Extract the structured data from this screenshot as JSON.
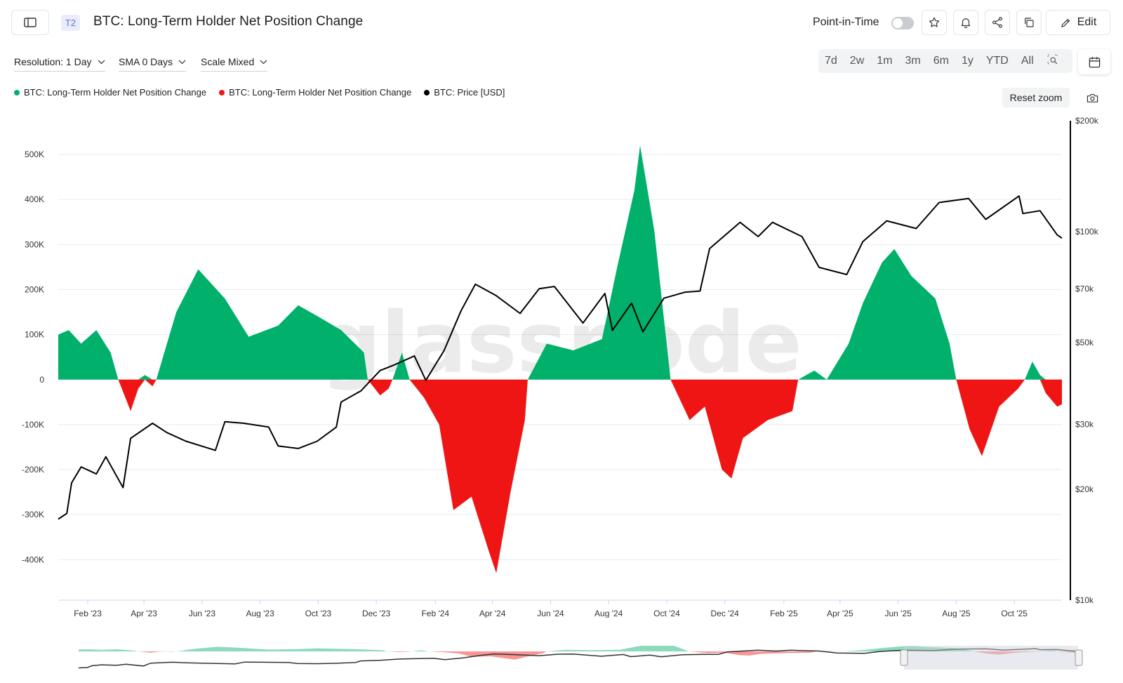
{
  "header": {
    "tier_badge": "T2",
    "title": "BTC: Long-Term Holder Net Position Change",
    "point_in_time_label": "Point-in-Time",
    "edit_label": "Edit"
  },
  "controls": {
    "resolution": "Resolution: 1 Day",
    "sma": "SMA 0 Days",
    "scale": "Scale Mixed",
    "ranges": [
      "7d",
      "2w",
      "1m",
      "3m",
      "6m",
      "1y",
      "YTD",
      "All"
    ]
  },
  "reset_zoom_label": "Reset zoom",
  "watermark": "glassnode",
  "colors": {
    "positive": "#00b06b",
    "negative": "#f01515",
    "price": "#000000",
    "grid": "#ebebeb"
  },
  "chart_data": {
    "type": "area",
    "series": [
      {
        "name": "BTC: Long-Term Holder Net Position Change",
        "color": "#00b06b",
        "role": "positive"
      },
      {
        "name": "BTC: Long-Term Holder Net Position Change",
        "color": "#f01515",
        "role": "negative"
      },
      {
        "name": "BTC: Price [USD]",
        "color": "#000000",
        "role": "price"
      }
    ],
    "x_range": [
      "2023-01-01",
      "2025-11-20"
    ],
    "x_ticks": [
      "Feb '23",
      "Apr '23",
      "Jun '23",
      "Aug '23",
      "Oct '23",
      "Dec '23",
      "Feb '24",
      "Apr '24",
      "Jun '24",
      "Aug '24",
      "Oct '24",
      "Dec '24",
      "Feb '25",
      "Apr '25",
      "Jun '25",
      "Aug '25",
      "Oct '25"
    ],
    "x_tick_dates": [
      "2023-02-01",
      "2023-04-01",
      "2023-06-01",
      "2023-08-01",
      "2023-10-01",
      "2023-12-01",
      "2024-02-01",
      "2024-04-01",
      "2024-06-01",
      "2024-08-01",
      "2024-10-01",
      "2024-12-01",
      "2025-02-01",
      "2025-04-01",
      "2025-06-01",
      "2025-08-01",
      "2025-10-01"
    ],
    "y_left": {
      "ticks": [
        500000,
        400000,
        300000,
        200000,
        100000,
        0,
        -100000,
        -200000,
        -300000,
        -400000
      ],
      "labels": [
        "500K",
        "400K",
        "300K",
        "200K",
        "100K",
        "0",
        "-100K",
        "-200K",
        "-300K",
        "-400K"
      ],
      "range": [
        -490000,
        575000
      ]
    },
    "y_right": {
      "scale": "log",
      "ticks": [
        10000,
        20000,
        30000,
        50000,
        70000,
        100000,
        200000
      ],
      "labels": [
        "$10k",
        "$20k",
        "$30k",
        "$50k",
        "$70k",
        "$100k",
        "$200k"
      ],
      "range": [
        10000,
        200000
      ]
    },
    "net_position_change": [
      [
        "2023-01-01",
        100000
      ],
      [
        "2023-01-12",
        110000
      ],
      [
        "2023-01-25",
        80000
      ],
      [
        "2023-02-10",
        110000
      ],
      [
        "2023-02-25",
        60000
      ],
      [
        "2023-03-05",
        0
      ],
      [
        "2023-03-18",
        -70000
      ],
      [
        "2023-03-26",
        -20000
      ],
      [
        "2023-04-02",
        10000
      ],
      [
        "2023-04-10",
        -15000
      ],
      [
        "2023-04-14",
        0
      ],
      [
        "2023-05-05",
        150000
      ],
      [
        "2023-05-28",
        245000
      ],
      [
        "2023-06-25",
        180000
      ],
      [
        "2023-07-20",
        95000
      ],
      [
        "2023-08-20",
        120000
      ],
      [
        "2023-09-10",
        165000
      ],
      [
        "2023-10-01",
        140000
      ],
      [
        "2023-10-25",
        110000
      ],
      [
        "2023-11-18",
        60000
      ],
      [
        "2023-11-22",
        0
      ],
      [
        "2023-12-05",
        -35000
      ],
      [
        "2023-12-14",
        -20000
      ],
      [
        "2023-12-18",
        0
      ],
      [
        "2023-12-28",
        60000
      ],
      [
        "2024-01-05",
        0
      ],
      [
        "2024-01-20",
        -40000
      ],
      [
        "2024-02-05",
        -100000
      ],
      [
        "2024-02-20",
        -290000
      ],
      [
        "2024-03-10",
        -260000
      ],
      [
        "2024-03-28",
        -380000
      ],
      [
        "2024-04-05",
        -430000
      ],
      [
        "2024-04-20",
        -250000
      ],
      [
        "2024-05-05",
        -90000
      ],
      [
        "2024-05-08",
        0
      ],
      [
        "2024-05-28",
        80000
      ],
      [
        "2024-06-25",
        65000
      ],
      [
        "2024-07-25",
        90000
      ],
      [
        "2024-08-10",
        250000
      ],
      [
        "2024-08-28",
        420000
      ],
      [
        "2024-09-03",
        520000
      ],
      [
        "2024-09-18",
        330000
      ],
      [
        "2024-10-05",
        0
      ],
      [
        "2024-10-25",
        -90000
      ],
      [
        "2024-11-10",
        -60000
      ],
      [
        "2024-11-28",
        -200000
      ],
      [
        "2024-12-08",
        -220000
      ],
      [
        "2024-12-20",
        -130000
      ],
      [
        "2025-01-15",
        -90000
      ],
      [
        "2025-02-10",
        -70000
      ],
      [
        "2025-02-16",
        0
      ],
      [
        "2025-03-05",
        20000
      ],
      [
        "2025-03-18",
        0
      ],
      [
        "2025-04-10",
        80000
      ],
      [
        "2025-04-25",
        170000
      ],
      [
        "2025-05-15",
        260000
      ],
      [
        "2025-05-28",
        290000
      ],
      [
        "2025-06-15",
        230000
      ],
      [
        "2025-07-10",
        180000
      ],
      [
        "2025-07-25",
        80000
      ],
      [
        "2025-08-01",
        0
      ],
      [
        "2025-08-15",
        -110000
      ],
      [
        "2025-08-28",
        -170000
      ],
      [
        "2025-09-15",
        -60000
      ],
      [
        "2025-10-05",
        -20000
      ],
      [
        "2025-10-12",
        0
      ],
      [
        "2025-10-20",
        40000
      ],
      [
        "2025-10-28",
        10000
      ],
      [
        "2025-11-03",
        -30000
      ],
      [
        "2025-11-15",
        -60000
      ],
      [
        "2025-11-20",
        -55000
      ]
    ],
    "btc_price_usd": [
      [
        "2023-01-01",
        16600
      ],
      [
        "2023-01-10",
        17200
      ],
      [
        "2023-01-15",
        20800
      ],
      [
        "2023-01-25",
        23000
      ],
      [
        "2023-02-10",
        22000
      ],
      [
        "2023-02-20",
        24500
      ],
      [
        "2023-03-10",
        20200
      ],
      [
        "2023-03-18",
        27500
      ],
      [
        "2023-04-10",
        30200
      ],
      [
        "2023-04-25",
        28500
      ],
      [
        "2023-05-15",
        27000
      ],
      [
        "2023-06-15",
        25500
      ],
      [
        "2023-06-25",
        30500
      ],
      [
        "2023-07-15",
        30200
      ],
      [
        "2023-08-10",
        29500
      ],
      [
        "2023-08-20",
        26200
      ],
      [
        "2023-09-10",
        25800
      ],
      [
        "2023-09-30",
        27000
      ],
      [
        "2023-10-20",
        29500
      ],
      [
        "2023-10-25",
        34500
      ],
      [
        "2023-11-15",
        37000
      ],
      [
        "2023-12-05",
        42000
      ],
      [
        "2023-12-20",
        43500
      ],
      [
        "2024-01-10",
        46000
      ],
      [
        "2024-01-22",
        39500
      ],
      [
        "2024-02-10",
        47500
      ],
      [
        "2024-02-28",
        61000
      ],
      [
        "2024-03-14",
        72000
      ],
      [
        "2024-04-05",
        67000
      ],
      [
        "2024-04-30",
        60000
      ],
      [
        "2024-05-20",
        70000
      ],
      [
        "2024-06-05",
        71000
      ],
      [
        "2024-07-05",
        56500
      ],
      [
        "2024-07-28",
        68000
      ],
      [
        "2024-08-05",
        54000
      ],
      [
        "2024-08-25",
        64000
      ],
      [
        "2024-09-06",
        53500
      ],
      [
        "2024-09-28",
        66000
      ],
      [
        "2024-10-20",
        68500
      ],
      [
        "2024-11-05",
        69000
      ],
      [
        "2024-11-15",
        90000
      ],
      [
        "2024-12-17",
        106000
      ],
      [
        "2025-01-05",
        97000
      ],
      [
        "2025-01-20",
        106000
      ],
      [
        "2025-02-20",
        97000
      ],
      [
        "2025-03-10",
        80000
      ],
      [
        "2025-04-08",
        76500
      ],
      [
        "2025-04-25",
        94000
      ],
      [
        "2025-05-20",
        107000
      ],
      [
        "2025-06-20",
        102000
      ],
      [
        "2025-07-14",
        120000
      ],
      [
        "2025-08-14",
        123000
      ],
      [
        "2025-09-01",
        108000
      ],
      [
        "2025-10-06",
        125000
      ],
      [
        "2025-10-10",
        112000
      ],
      [
        "2025-10-28",
        114000
      ],
      [
        "2025-11-15",
        98000
      ],
      [
        "2025-11-20",
        96000
      ]
    ]
  }
}
